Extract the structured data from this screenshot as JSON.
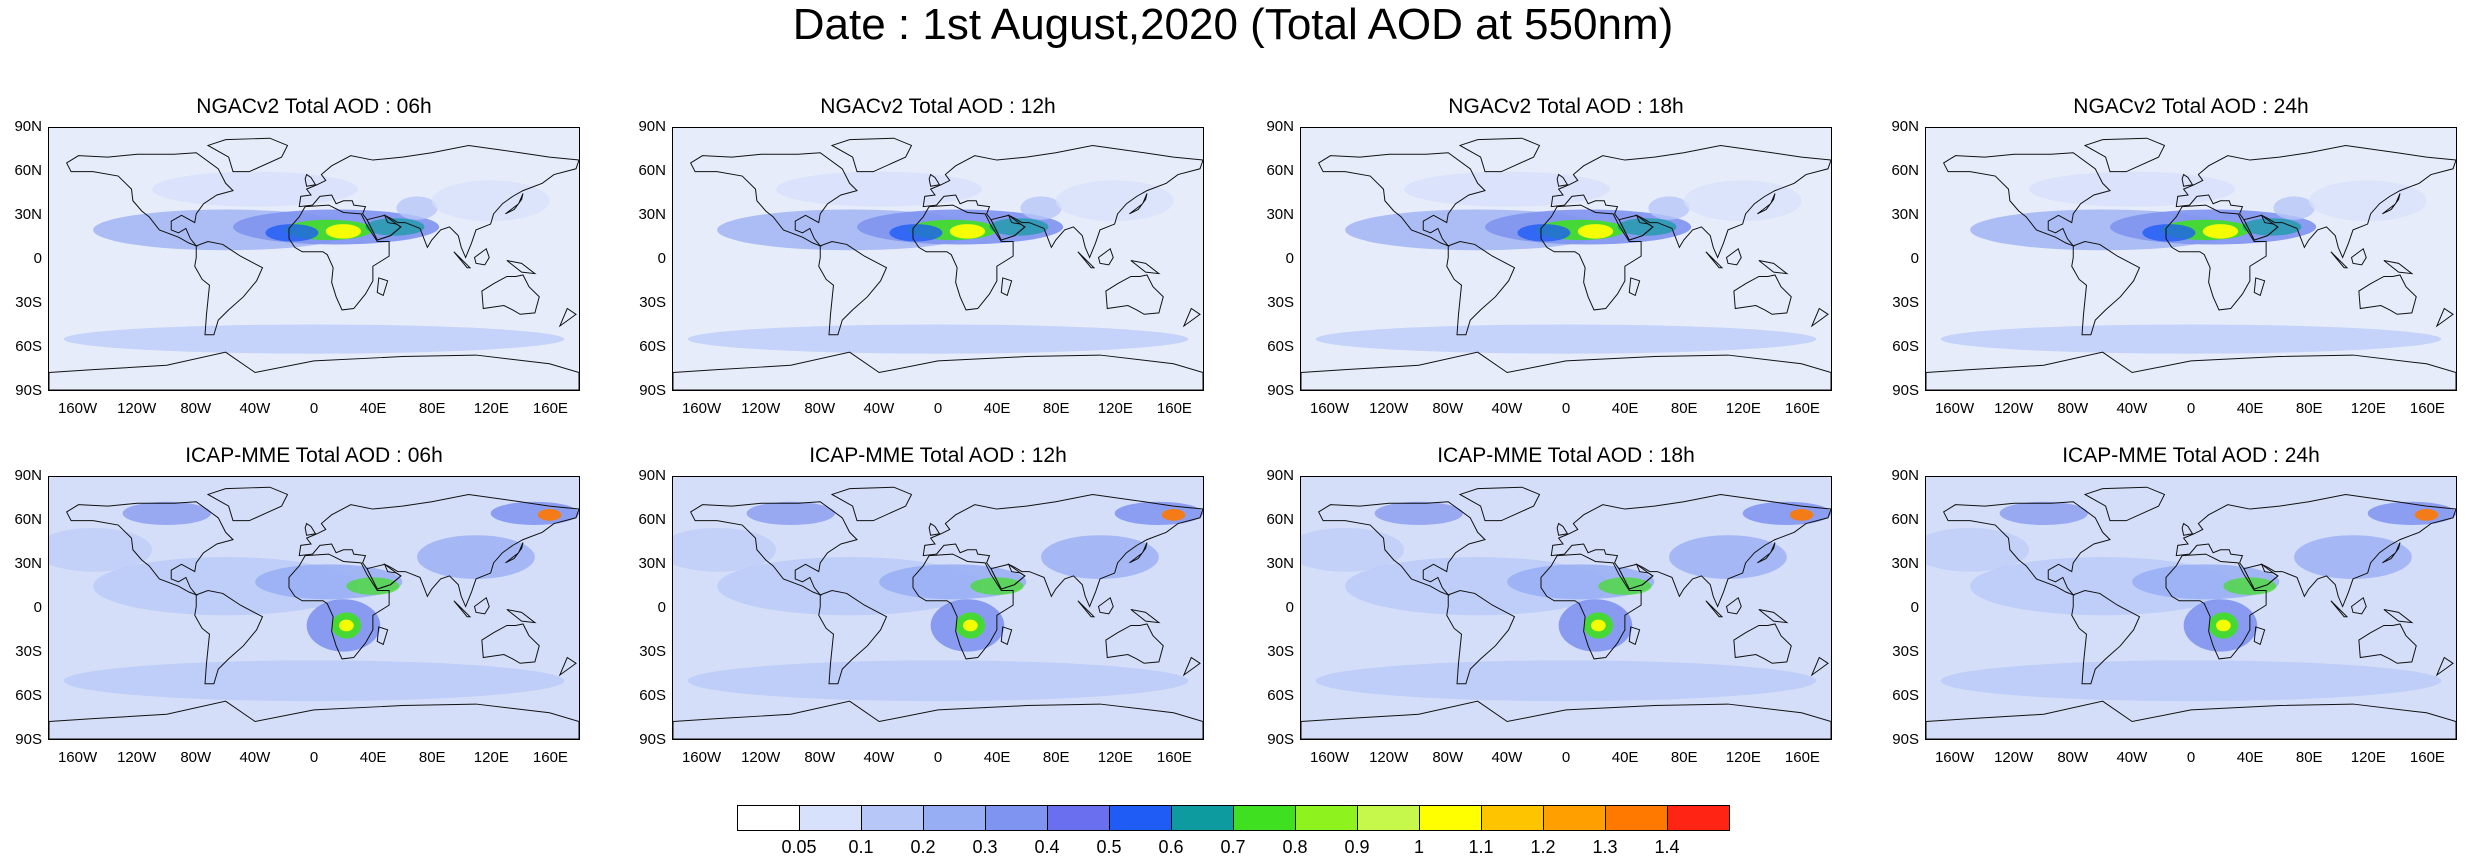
{
  "title": "Date : 1st August,2020 (Total AOD at 550nm)",
  "rows": [
    {
      "model": "NGACv2",
      "panels": [
        {
          "title": "NGACv2 Total AOD : 06h"
        },
        {
          "title": "NGACv2 Total AOD : 12h"
        },
        {
          "title": "NGACv2 Total AOD : 18h"
        },
        {
          "title": "NGACv2 Total AOD : 24h"
        }
      ]
    },
    {
      "model": "ICAP-MME",
      "panels": [
        {
          "title": "ICAP-MME Total AOD : 06h"
        },
        {
          "title": "ICAP-MME Total AOD : 12h"
        },
        {
          "title": "ICAP-MME Total AOD : 18h"
        },
        {
          "title": "ICAP-MME Total AOD : 24h"
        }
      ]
    }
  ],
  "lat_labels": [
    "90N",
    "60N",
    "30N",
    "0",
    "30S",
    "60S",
    "90S"
  ],
  "lon_labels": [
    "160W",
    "120W",
    "80W",
    "40W",
    "0",
    "40E",
    "80E",
    "120E",
    "160E"
  ],
  "colorbar": {
    "labels": [
      "0.05",
      "0.1",
      "0.2",
      "0.3",
      "0.4",
      "0.5",
      "0.6",
      "0.7",
      "0.8",
      "0.9",
      "1",
      "1.1",
      "1.2",
      "1.3",
      "1.4"
    ],
    "colors": [
      "#ffffff",
      "#d7e1fb",
      "#b7c7f8",
      "#98aef4",
      "#7f93f0",
      "#6a6ff0",
      "#1f5cf5",
      "#0e9ba0",
      "#3fe020",
      "#8ef21e",
      "#c6f74b",
      "#ffff00",
      "#ffc400",
      "#ff9f00",
      "#ff7800",
      "#ff2414"
    ]
  }
}
